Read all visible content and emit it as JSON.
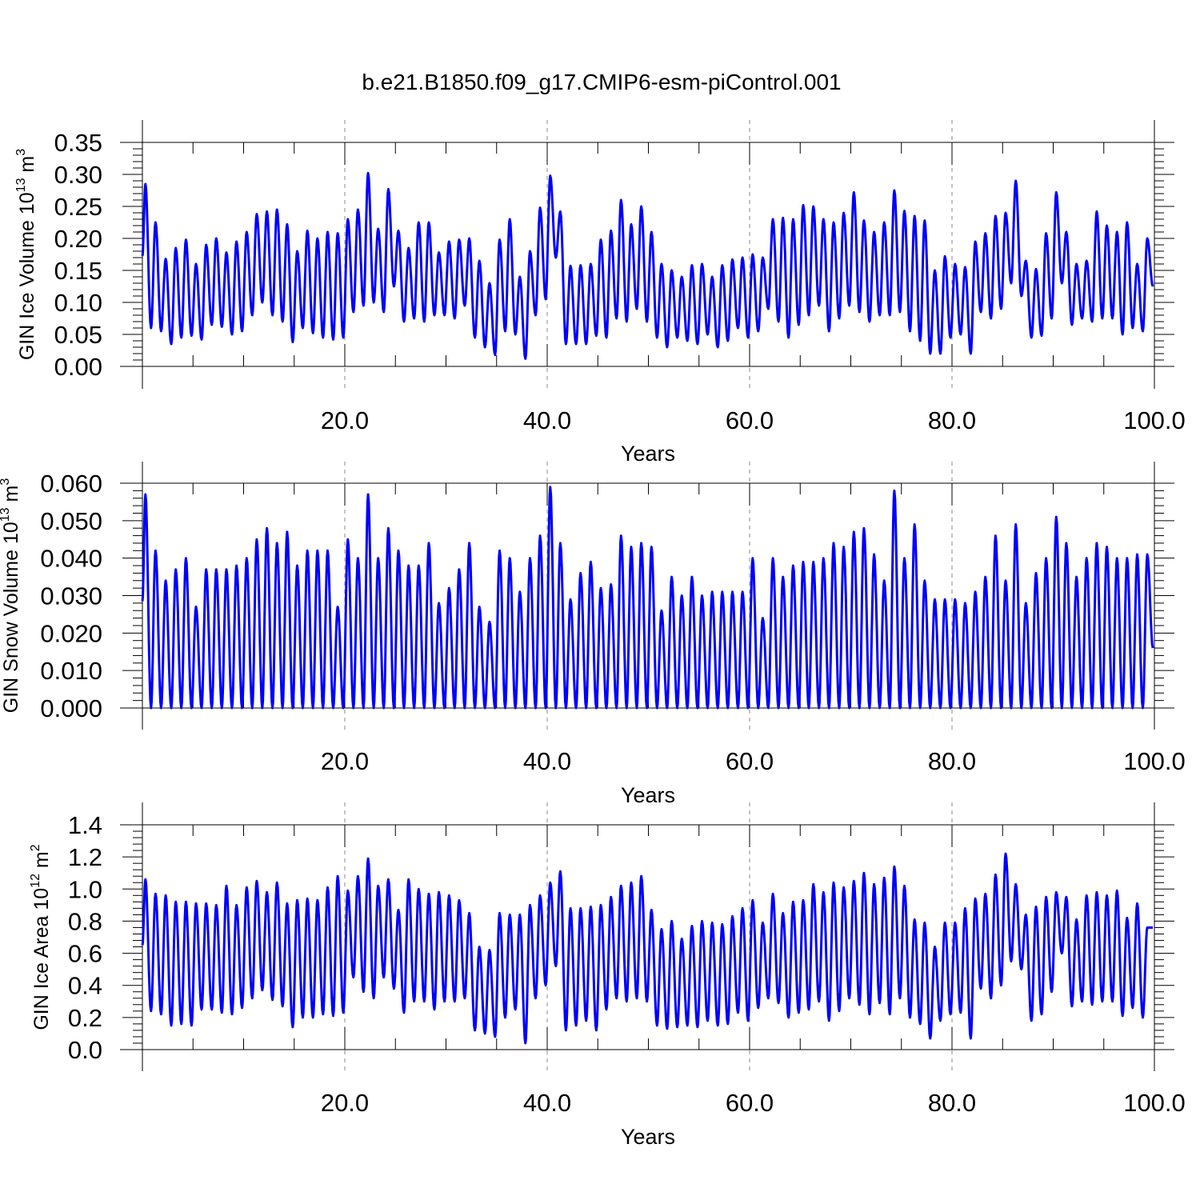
{
  "figure": {
    "title": "b.e21.B1850.f09_g17.CMIP6-esm-piControl.001",
    "line_color": "#0000ff"
  },
  "chart_data": [
    {
      "type": "line",
      "ylabel_main": "GIN Ice Volume 10",
      "ylabel_exp": "13",
      "ylabel_unit": " m",
      "ylabel_unit_exp": "3",
      "xlabel": "Years",
      "xlim": [
        0,
        100
      ],
      "ylim": [
        0,
        0.35
      ],
      "xticks": [
        20,
        40,
        60,
        80,
        100
      ],
      "xtick_labels": [
        "20.0",
        "40.0",
        "60.0",
        "80.0",
        "100.0"
      ],
      "yticks": [
        0,
        0.05,
        0.1,
        0.15,
        0.2,
        0.25,
        0.3,
        0.35
      ],
      "ytick_labels": [
        "0.00",
        "0.05",
        "0.10",
        "0.15",
        "0.20",
        "0.25",
        "0.30",
        "0.35"
      ],
      "grid": "vertical dashed at x ticks",
      "series": [
        {
          "peak_years": [
            0.3,
            1.3,
            2.3,
            3.3,
            4.3,
            5.3,
            6.3,
            7.3,
            8.3,
            9.3,
            10.3,
            11.3,
            12.3,
            13.3,
            14.3,
            15.3,
            16.3,
            17.3,
            18.3,
            19.3,
            20.3,
            21.3,
            22.3,
            23.3,
            24.3,
            25.3,
            26.3,
            27.3,
            28.3,
            29.3,
            30.3,
            31.3,
            32.3,
            33.3,
            34.3,
            35.3,
            36.3,
            37.3,
            38.3,
            39.3,
            40.3,
            41.3,
            42.3,
            43.3,
            44.3,
            45.3,
            46.3,
            47.3,
            48.3,
            49.3,
            50.3,
            51.3,
            52.3,
            53.3,
            54.3,
            55.3,
            56.3,
            57.3,
            58.3,
            59.3,
            60.3,
            61.3,
            62.3,
            63.3,
            64.3,
            65.3,
            66.3,
            67.3,
            68.3,
            69.3,
            70.3,
            71.3,
            72.3,
            73.3,
            74.3,
            75.3,
            76.3,
            77.3,
            78.3,
            79.3,
            80.3,
            81.3,
            82.3,
            83.3,
            84.3,
            85.3,
            86.3,
            87.3,
            88.3,
            89.3,
            90.3,
            91.3,
            92.3,
            93.3,
            94.3,
            95.3,
            96.3,
            97.3,
            98.3,
            99.3
          ],
          "maxima": [
            0.285,
            0.225,
            0.168,
            0.185,
            0.198,
            0.16,
            0.19,
            0.2,
            0.178,
            0.195,
            0.21,
            0.238,
            0.242,
            0.245,
            0.222,
            0.18,
            0.212,
            0.2,
            0.21,
            0.208,
            0.23,
            0.245,
            0.302,
            0.215,
            0.277,
            0.212,
            0.185,
            0.225,
            0.225,
            0.178,
            0.195,
            0.198,
            0.2,
            0.165,
            0.13,
            0.198,
            0.23,
            0.14,
            0.18,
            0.248,
            0.298,
            0.242,
            0.157,
            0.158,
            0.16,
            0.198,
            0.212,
            0.26,
            0.222,
            0.25,
            0.21,
            0.16,
            0.15,
            0.14,
            0.158,
            0.16,
            0.14,
            0.158,
            0.167,
            0.17,
            0.175,
            0.17,
            0.23,
            0.232,
            0.23,
            0.252,
            0.25,
            0.23,
            0.225,
            0.24,
            0.272,
            0.228,
            0.21,
            0.225,
            0.275,
            0.243,
            0.235,
            0.228,
            0.15,
            0.172,
            0.16,
            0.155,
            0.195,
            0.208,
            0.235,
            0.24,
            0.29,
            0.165,
            0.152,
            0.208,
            0.272,
            0.21,
            0.16,
            0.165,
            0.242,
            0.22,
            0.21,
            0.225,
            0.16,
            0.2
          ],
          "minima": [
            0.06,
            0.055,
            0.035,
            0.045,
            0.048,
            0.042,
            0.065,
            0.062,
            0.05,
            0.055,
            0.08,
            0.1,
            0.08,
            0.07,
            0.038,
            0.06,
            0.052,
            0.045,
            0.042,
            0.045,
            0.085,
            0.095,
            0.1,
            0.085,
            0.125,
            0.07,
            0.075,
            0.07,
            0.08,
            0.08,
            0.075,
            0.095,
            0.045,
            0.03,
            0.018,
            0.055,
            0.05,
            0.012,
            0.08,
            0.105,
            0.17,
            0.035,
            0.035,
            0.035,
            0.048,
            0.045,
            0.075,
            0.07,
            0.09,
            0.07,
            0.045,
            0.03,
            0.045,
            0.04,
            0.035,
            0.05,
            0.03,
            0.04,
            0.06,
            0.045,
            0.055,
            0.09,
            0.07,
            0.045,
            0.065,
            0.08,
            0.095,
            0.055,
            0.075,
            0.095,
            0.085,
            0.07,
            0.08,
            0.08,
            0.085,
            0.055,
            0.04,
            0.02,
            0.02,
            0.045,
            0.05,
            0.02,
            0.085,
            0.075,
            0.09,
            0.13,
            0.11,
            0.045,
            0.048,
            0.075,
            0.13,
            0.065,
            0.075,
            0.07,
            0.075,
            0.075,
            0.05,
            0.06,
            0.055,
            0.125
          ]
        }
      ]
    },
    {
      "type": "line",
      "ylabel_main": "GIN Snow Volume 10",
      "ylabel_exp": "13",
      "ylabel_unit": " m",
      "ylabel_unit_exp": "3",
      "xlabel": "Years",
      "xlim": [
        0,
        100
      ],
      "ylim": [
        0,
        0.06
      ],
      "xticks": [
        20,
        40,
        60,
        80,
        100
      ],
      "xtick_labels": [
        "20.0",
        "40.0",
        "60.0",
        "80.0",
        "100.0"
      ],
      "yticks": [
        0,
        0.01,
        0.02,
        0.03,
        0.04,
        0.05,
        0.06
      ],
      "ytick_labels": [
        "0.000",
        "0.010",
        "0.020",
        "0.030",
        "0.040",
        "0.050",
        "0.060"
      ],
      "grid": "vertical dashed at x ticks",
      "series": [
        {
          "peak_years": [
            0.3,
            1.3,
            2.3,
            3.3,
            4.3,
            5.3,
            6.3,
            7.3,
            8.3,
            9.3,
            10.3,
            11.3,
            12.3,
            13.3,
            14.3,
            15.3,
            16.3,
            17.3,
            18.3,
            19.3,
            20.3,
            21.3,
            22.3,
            23.3,
            24.3,
            25.3,
            26.3,
            27.3,
            28.3,
            29.3,
            30.3,
            31.3,
            32.3,
            33.3,
            34.3,
            35.3,
            36.3,
            37.3,
            38.3,
            39.3,
            40.3,
            41.3,
            42.3,
            43.3,
            44.3,
            45.3,
            46.3,
            47.3,
            48.3,
            49.3,
            50.3,
            51.3,
            52.3,
            53.3,
            54.3,
            55.3,
            56.3,
            57.3,
            58.3,
            59.3,
            60.3,
            61.3,
            62.3,
            63.3,
            64.3,
            65.3,
            66.3,
            67.3,
            68.3,
            69.3,
            70.3,
            71.3,
            72.3,
            73.3,
            74.3,
            75.3,
            76.3,
            77.3,
            78.3,
            79.3,
            80.3,
            81.3,
            82.3,
            83.3,
            84.3,
            85.3,
            86.3,
            87.3,
            88.3,
            89.3,
            90.3,
            91.3,
            92.3,
            93.3,
            94.3,
            95.3,
            96.3,
            97.3,
            98.3,
            99.3
          ],
          "maxima": [
            0.057,
            0.042,
            0.034,
            0.037,
            0.04,
            0.027,
            0.037,
            0.037,
            0.037,
            0.038,
            0.04,
            0.045,
            0.048,
            0.044,
            0.047,
            0.038,
            0.042,
            0.042,
            0.042,
            0.027,
            0.045,
            0.04,
            0.057,
            0.04,
            0.048,
            0.042,
            0.038,
            0.038,
            0.044,
            0.028,
            0.032,
            0.037,
            0.044,
            0.027,
            0.023,
            0.042,
            0.04,
            0.031,
            0.04,
            0.046,
            0.059,
            0.044,
            0.029,
            0.036,
            0.039,
            0.032,
            0.033,
            0.046,
            0.043,
            0.044,
            0.043,
            0.026,
            0.035,
            0.03,
            0.035,
            0.03,
            0.031,
            0.031,
            0.031,
            0.031,
            0.04,
            0.024,
            0.04,
            0.035,
            0.038,
            0.039,
            0.039,
            0.04,
            0.044,
            0.043,
            0.047,
            0.048,
            0.041,
            0.034,
            0.058,
            0.04,
            0.049,
            0.034,
            0.029,
            0.029,
            0.029,
            0.028,
            0.031,
            0.035,
            0.046,
            0.034,
            0.049,
            0.028,
            0.036,
            0.04,
            0.051,
            0.044,
            0.035,
            0.04,
            0.044,
            0.043,
            0.04,
            0.04,
            0.041,
            0.041
          ],
          "minima": [
            0.0,
            0.0,
            0.0,
            0.0,
            0.0,
            0.0,
            0.0,
            0.0,
            0.0,
            0.0,
            0.0,
            0.0,
            0.0,
            0.0,
            0.0,
            0.0,
            0.0,
            0.0,
            0.0,
            0.0,
            0.0,
            0.0,
            0.0,
            0.0,
            0.0,
            0.0,
            0.0,
            0.0,
            0.0,
            0.0,
            0.0,
            0.0,
            0.0,
            0.0,
            0.0,
            0.0,
            0.0,
            0.0,
            0.0,
            0.0,
            0.0,
            0.0,
            0.0,
            0.0,
            0.0,
            0.0,
            0.0,
            0.0,
            0.0,
            0.0,
            0.0,
            0.0,
            0.0,
            0.0,
            0.0,
            0.0,
            0.0,
            0.0,
            0.0,
            0.0,
            0.0,
            0.0,
            0.0,
            0.0,
            0.0,
            0.0,
            0.0,
            0.0,
            0.0,
            0.0,
            0.0,
            0.0,
            0.0,
            0.0,
            0.0,
            0.0,
            0.0,
            0.0,
            0.0,
            0.0,
            0.0,
            0.0,
            0.0,
            0.0,
            0.0,
            0.0,
            0.0,
            0.0,
            0.0,
            0.0,
            0.0,
            0.0,
            0.0,
            0.0,
            0.0,
            0.0,
            0.0,
            0.0,
            0.0,
            0.016
          ]
        }
      ]
    },
    {
      "type": "line",
      "ylabel_main": "GIN Ice Area 10",
      "ylabel_exp": "12",
      "ylabel_unit": " m",
      "ylabel_unit_exp": "2",
      "xlabel": "Years",
      "xlim": [
        0,
        100
      ],
      "ylim": [
        0,
        1.4
      ],
      "xticks": [
        20,
        40,
        60,
        80,
        100
      ],
      "xtick_labels": [
        "20.0",
        "40.0",
        "60.0",
        "80.0",
        "100.0"
      ],
      "yticks": [
        0,
        0.2,
        0.4,
        0.6,
        0.8,
        1.0,
        1.2,
        1.4
      ],
      "ytick_labels": [
        "0.0",
        "0.2",
        "0.4",
        "0.6",
        "0.8",
        "1.0",
        "1.2",
        "1.4"
      ],
      "grid": "vertical dashed at x ticks",
      "series": [
        {
          "peak_years": [
            0.3,
            1.3,
            2.3,
            3.3,
            4.3,
            5.3,
            6.3,
            7.3,
            8.3,
            9.3,
            10.3,
            11.3,
            12.3,
            13.3,
            14.3,
            15.3,
            16.3,
            17.3,
            18.3,
            19.3,
            20.3,
            21.3,
            22.3,
            23.3,
            24.3,
            25.3,
            26.3,
            27.3,
            28.3,
            29.3,
            30.3,
            31.3,
            32.3,
            33.3,
            34.3,
            35.3,
            36.3,
            37.3,
            38.3,
            39.3,
            40.3,
            41.3,
            42.3,
            43.3,
            44.3,
            45.3,
            46.3,
            47.3,
            48.3,
            49.3,
            50.3,
            51.3,
            52.3,
            53.3,
            54.3,
            55.3,
            56.3,
            57.3,
            58.3,
            59.3,
            60.3,
            61.3,
            62.3,
            63.3,
            64.3,
            65.3,
            66.3,
            67.3,
            68.3,
            69.3,
            70.3,
            71.3,
            72.3,
            73.3,
            74.3,
            75.3,
            76.3,
            77.3,
            78.3,
            79.3,
            80.3,
            81.3,
            82.3,
            83.3,
            84.3,
            85.3,
            86.3,
            87.3,
            88.3,
            89.3,
            90.3,
            91.3,
            92.3,
            93.3,
            94.3,
            95.3,
            96.3,
            97.3,
            98.3,
            99.3
          ],
          "maxima": [
            1.06,
            0.97,
            0.96,
            0.92,
            0.92,
            0.91,
            0.91,
            0.9,
            1.02,
            0.9,
            1.01,
            1.05,
            0.98,
            1.04,
            0.91,
            0.93,
            0.94,
            0.93,
            1.01,
            1.08,
            0.99,
            1.08,
            1.19,
            1.02,
            1.06,
            0.87,
            1.06,
            1.0,
            0.97,
            0.98,
            0.96,
            0.93,
            0.85,
            0.64,
            0.62,
            0.85,
            0.84,
            0.84,
            0.9,
            0.96,
            1.04,
            1.11,
            0.88,
            0.88,
            0.89,
            0.9,
            0.95,
            1.02,
            1.04,
            1.08,
            0.87,
            0.75,
            0.8,
            0.69,
            0.77,
            0.8,
            0.79,
            0.78,
            0.83,
            0.88,
            0.93,
            0.79,
            0.97,
            0.85,
            0.92,
            0.93,
            1.03,
            0.98,
            1.04,
            1.01,
            1.05,
            1.1,
            1.03,
            1.07,
            1.14,
            1.02,
            0.81,
            0.79,
            0.64,
            0.79,
            0.79,
            0.88,
            0.94,
            0.97,
            1.09,
            1.22,
            1.03,
            0.84,
            0.89,
            0.95,
            0.98,
            0.95,
            0.81,
            0.96,
            0.98,
            0.96,
            0.99,
            0.82,
            0.91,
            0.76
          ],
          "minima": [
            0.24,
            0.22,
            0.15,
            0.16,
            0.15,
            0.25,
            0.25,
            0.23,
            0.22,
            0.26,
            0.32,
            0.37,
            0.31,
            0.27,
            0.14,
            0.2,
            0.2,
            0.22,
            0.21,
            0.23,
            0.45,
            0.36,
            0.32,
            0.45,
            0.38,
            0.23,
            0.3,
            0.3,
            0.25,
            0.3,
            0.3,
            0.32,
            0.12,
            0.1,
            0.08,
            0.2,
            0.25,
            0.04,
            0.32,
            0.4,
            0.52,
            0.12,
            0.15,
            0.18,
            0.12,
            0.25,
            0.32,
            0.3,
            0.32,
            0.3,
            0.15,
            0.13,
            0.14,
            0.15,
            0.14,
            0.18,
            0.15,
            0.16,
            0.23,
            0.18,
            0.26,
            0.32,
            0.29,
            0.2,
            0.23,
            0.25,
            0.3,
            0.18,
            0.24,
            0.32,
            0.28,
            0.22,
            0.29,
            0.22,
            0.32,
            0.2,
            0.16,
            0.07,
            0.18,
            0.22,
            0.23,
            0.07,
            0.38,
            0.32,
            0.4,
            0.55,
            0.5,
            0.18,
            0.22,
            0.36,
            0.6,
            0.27,
            0.3,
            0.28,
            0.3,
            0.3,
            0.21,
            0.26,
            0.2,
            0.76
          ]
        }
      ]
    }
  ]
}
